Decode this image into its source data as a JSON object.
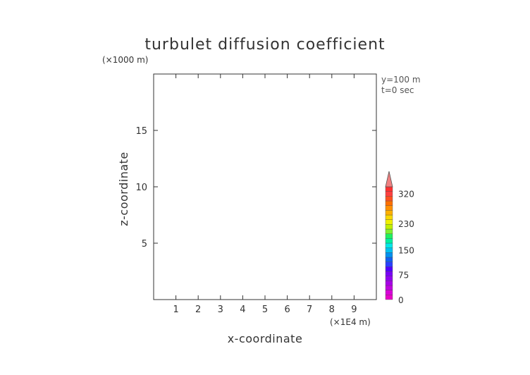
{
  "chart_data": {
    "type": "heatmap",
    "title": "turbulet diffusion coefficient",
    "xlabel": "x-coordinate",
    "ylabel": "z-coordinate",
    "x_unit": "(×1E4 m)",
    "y_unit": "(×1000 m)",
    "xlim": [
      0,
      10
    ],
    "ylim": [
      0,
      20
    ],
    "x_ticks": [
      "1",
      "2",
      "3",
      "4",
      "5",
      "6",
      "7",
      "8",
      "9"
    ],
    "y_ticks": [
      "5",
      "10",
      "15"
    ],
    "annotations": [
      "y=100 m",
      "t=0 sec"
    ],
    "field_values": [],
    "colorbar": {
      "labels": [
        "320",
        "230",
        "150",
        "75",
        "0"
      ],
      "label_values": [
        320,
        230,
        150,
        75,
        0
      ],
      "range": [
        0,
        340
      ],
      "extend": "max",
      "colors": [
        "#e800c8",
        "#d800d8",
        "#c000e0",
        "#a800e8",
        "#9000f0",
        "#7800f8",
        "#5000ff",
        "#2840ff",
        "#1060f0",
        "#0090f0",
        "#00c0f0",
        "#00e8e8",
        "#00f0a0",
        "#20f060",
        "#80f030",
        "#c0f000",
        "#f0f000",
        "#f8d800",
        "#ffb000",
        "#ff9000",
        "#ff7000",
        "#ff5020",
        "#ff4040",
        "#ff3030"
      ]
    }
  }
}
